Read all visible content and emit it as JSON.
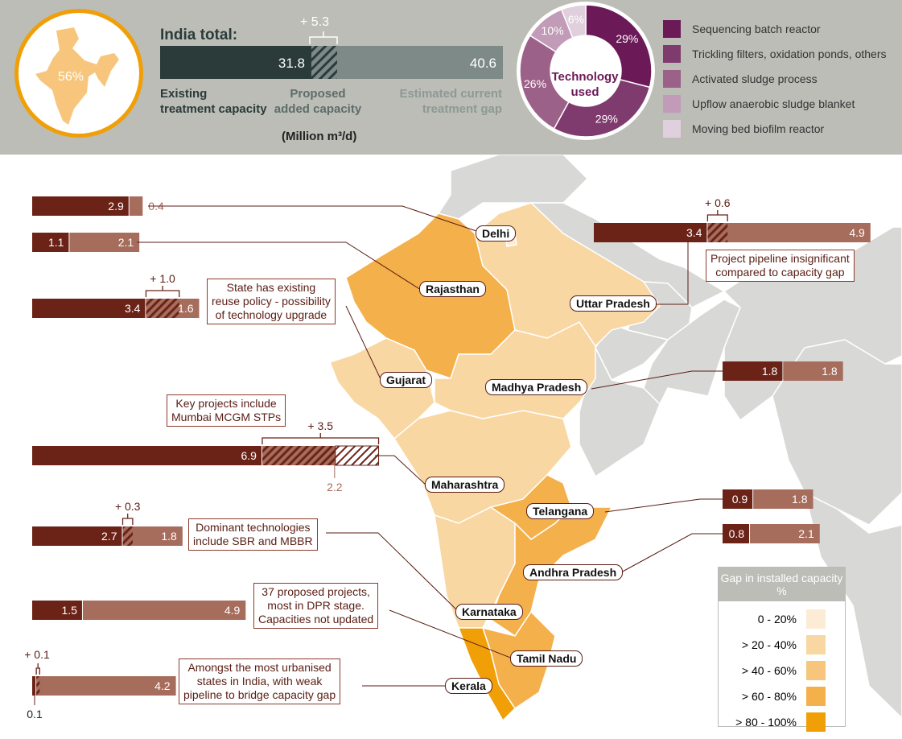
{
  "header": {
    "india_pct": "56%",
    "title": "India total:",
    "existing": 31.8,
    "proposed": 5.3,
    "gap": 40.6,
    "existing_label": "31.8",
    "proposed_label": "+ 5.3",
    "gap_label": "40.6",
    "existing_caption": [
      "Existing",
      "treatment capacity"
    ],
    "proposed_caption": [
      "Proposed",
      "added capacity"
    ],
    "gap_caption": [
      "Estimated current",
      "treatment gap"
    ],
    "unit": "(Million m³/d)"
  },
  "technology": {
    "center_label": [
      "Technology",
      "used"
    ],
    "slices": [
      {
        "name": "Sequencing batch reactor",
        "pct": 29,
        "label": "29%",
        "color": "#6b1a57"
      },
      {
        "name": "Trickling filters, oxidation ponds, others",
        "pct": 29,
        "label": "29%",
        "color": "#7f3b6e"
      },
      {
        "name": "Activated sludge process",
        "pct": 26,
        "label": "26%",
        "color": "#9c6189"
      },
      {
        "name": "Upflow anaerobic sludge blanket",
        "pct": 10,
        "label": "10%",
        "color": "#c19bb7"
      },
      {
        "name": "Moving bed biofilm reactor",
        "pct": 6,
        "label": "6%",
        "color": "#e0cfdc"
      }
    ]
  },
  "colors": {
    "existing": "#6b2318",
    "gap": "#a66c5c",
    "header_existing": "#2b3b3a",
    "header_gap": "#7d8a87"
  },
  "chart_data": {
    "type": "bar",
    "unit": "Million m³/d",
    "series_names": [
      "Existing treatment capacity",
      "Proposed added capacity",
      "Estimated current treatment gap"
    ],
    "states": [
      {
        "name": "Delhi",
        "existing": 2.9,
        "proposed": 0,
        "gap": 0.4
      },
      {
        "name": "Rajasthan",
        "existing": 1.1,
        "proposed": 0,
        "gap": 2.1
      },
      {
        "name": "Gujarat",
        "existing": 3.4,
        "proposed": 1.0,
        "gap": 1.6
      },
      {
        "name": "Maharashtra",
        "existing": 6.9,
        "proposed": 3.5,
        "gap": 2.2
      },
      {
        "name": "Karnataka",
        "existing": 2.7,
        "proposed": 0.3,
        "gap": 1.8
      },
      {
        "name": "Tamil Nadu",
        "existing": 1.5,
        "proposed": 0,
        "gap": 4.9
      },
      {
        "name": "Kerala",
        "existing": 0.1,
        "proposed": 0.1,
        "gap": 4.2
      },
      {
        "name": "Uttar Pradesh",
        "existing": 3.4,
        "proposed": 0.6,
        "gap": 4.9
      },
      {
        "name": "Madhya Pradesh",
        "existing": 1.8,
        "proposed": 0,
        "gap": 1.8
      },
      {
        "name": "Telangana",
        "existing": 0.9,
        "proposed": 0,
        "gap": 1.8
      },
      {
        "name": "Andhra Pradesh",
        "existing": 0.8,
        "proposed": 0,
        "gap": 2.1
      }
    ]
  },
  "notes": {
    "gujarat": [
      "State has existing",
      "reuse policy - possibility",
      "of technology upgrade"
    ],
    "maharashtra": [
      "Key projects include",
      "Mumbai MCGM STPs"
    ],
    "karnataka": [
      "Dominant technologies",
      "include SBR and MBBR"
    ],
    "tamil_nadu": [
      "37 proposed projects,",
      "most in DPR stage.",
      "Capacities not updated"
    ],
    "kerala": [
      "Amongst the most urbanised",
      "states in India, with weak",
      "pipeline to bridge capacity gap"
    ],
    "uttar_pradesh": [
      "Project pipeline insignificant",
      "compared to capacity gap"
    ]
  },
  "legend": {
    "title": "Gap in installed capacity %",
    "items": [
      {
        "label": "0 - 20%",
        "color": "#fcebd5"
      },
      {
        "label": "> 20 - 40%",
        "color": "#f9d7a3"
      },
      {
        "label": "> 40 - 60%",
        "color": "#f7c67c"
      },
      {
        "label": "> 60 - 80%",
        "color": "#f4b04a"
      },
      {
        "label": "> 80 - 100%",
        "color": "#f09f07"
      }
    ]
  }
}
